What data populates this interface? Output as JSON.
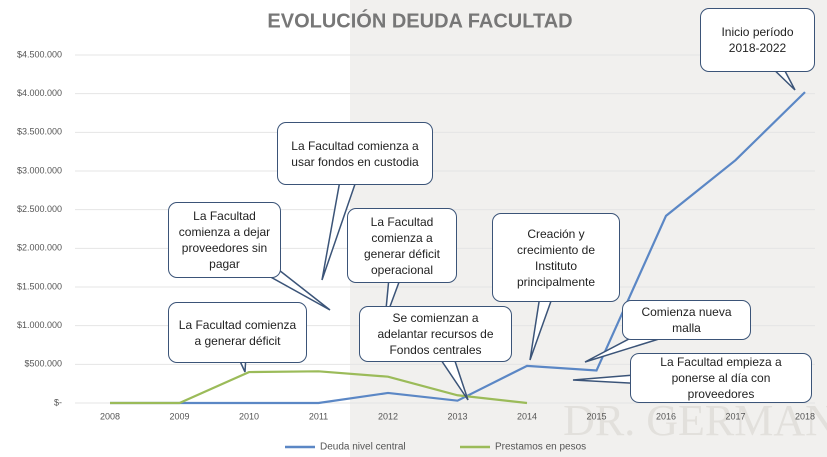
{
  "chart_data": {
    "type": "line",
    "title": "EVOLUCIÓN DEUDA FACULTAD",
    "categories": [
      "2008",
      "2009",
      "2010",
      "2011",
      "2012",
      "2013",
      "2014",
      "2015",
      "2016",
      "2017",
      "2018"
    ],
    "series": [
      {
        "name": "Deuda nivel central",
        "color": "#5b87c5",
        "values": [
          0,
          0,
          0,
          0,
          130000,
          30000,
          480000,
          420000,
          2420000,
          3140000,
          4020000
        ]
      },
      {
        "name": "Prestamos en pesos",
        "color": "#9bbb59",
        "values": [
          0,
          0,
          400000,
          410000,
          340000,
          100000,
          0,
          null,
          null,
          null,
          null
        ]
      }
    ],
    "ylim": [
      0,
      4500000
    ],
    "yticks": [
      {
        "value": 0,
        "label": "$-"
      },
      {
        "value": 500000,
        "label": "$500.000"
      },
      {
        "value": 1000000,
        "label": "$1.000.000"
      },
      {
        "value": 1500000,
        "label": "$1.500.000"
      },
      {
        "value": 2000000,
        "label": "$2.000.000"
      },
      {
        "value": 2500000,
        "label": "$2.500.000"
      },
      {
        "value": 3000000,
        "label": "$3.000.000"
      },
      {
        "value": 3500000,
        "label": "$3.500.000"
      },
      {
        "value": 4000000,
        "label": "$4.000.000"
      },
      {
        "value": 4500000,
        "label": "$4.500.000"
      }
    ],
    "grid": true,
    "legend": "bottom",
    "annotations": [
      "Inicio período 2018-2022",
      "La Facultad comienza a usar fondos en custodia",
      "La Facultad comienza a dejar proveedores sin pagar",
      "La Facultad comienza a generar déficit operacional",
      "Creación y crecimiento de Instituto principalmente",
      "La Facultad comienza a generar déficit",
      "Se comienzan a adelantar recursos de Fondos centrales",
      "Comienza nueva malla",
      "La Facultad empieza a ponerse al día con proveedores"
    ],
    "watermark": "DR. GERMAN"
  }
}
